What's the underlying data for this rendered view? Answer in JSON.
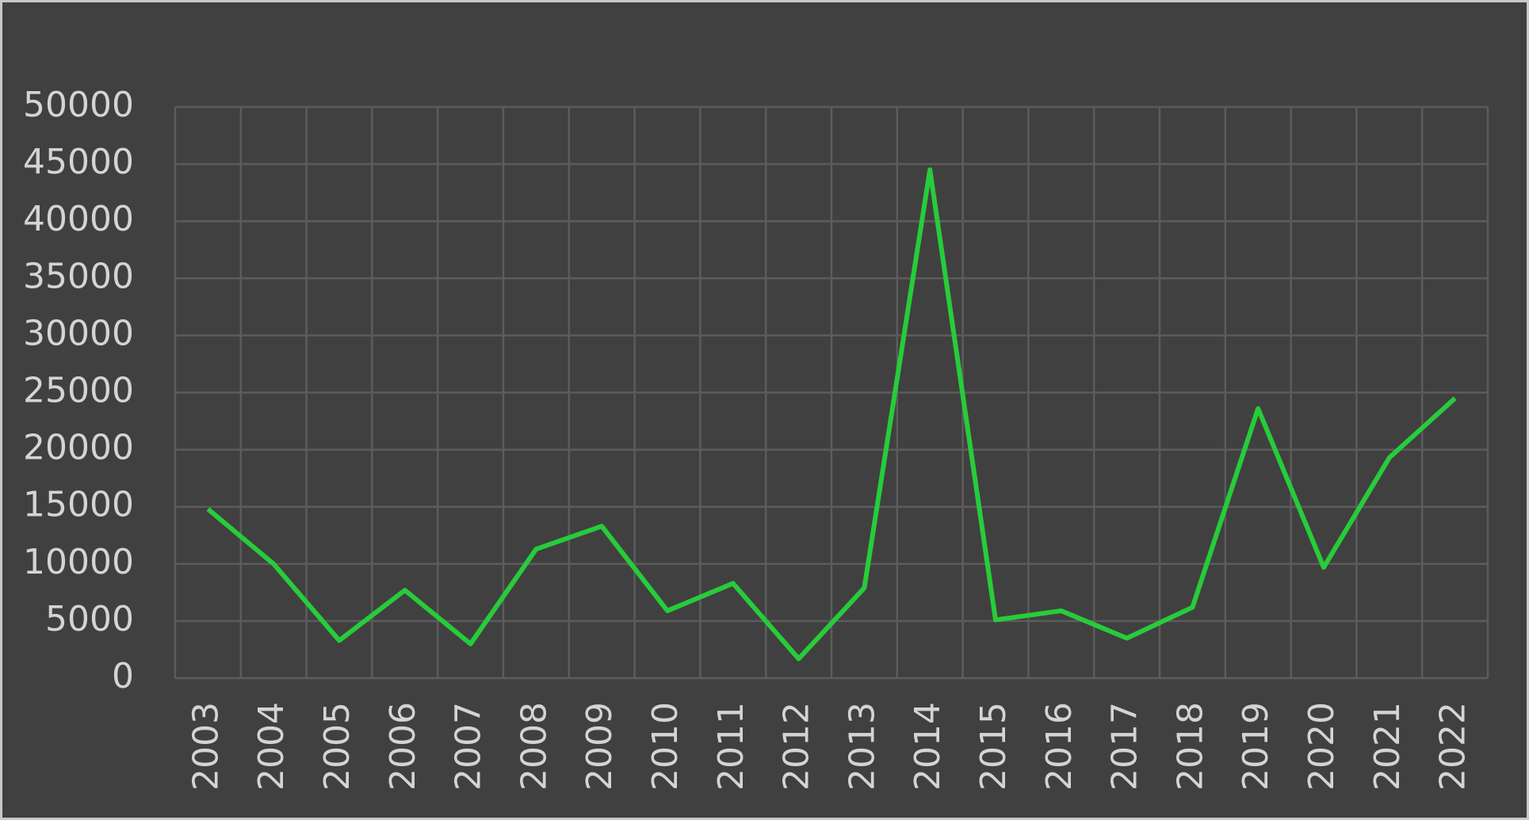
{
  "chart_data": {
    "type": "line",
    "categories": [
      "2003",
      "2004",
      "2005",
      "2006",
      "2007",
      "2008",
      "2009",
      "2010",
      "2011",
      "2012",
      "2013",
      "2014",
      "2015",
      "2016",
      "2017",
      "2018",
      "2019",
      "2020",
      "2021",
      "2022"
    ],
    "series": [
      {
        "color": "#27cc3a",
        "values": [
          14800,
          10000,
          3300,
          7700,
          3000,
          11300,
          13300,
          5900,
          8300,
          1700,
          7900,
          44500,
          5100,
          5900,
          3500,
          6200,
          23600,
          9700,
          19300,
          24500
        ]
      }
    ],
    "ylim": [
      0,
      50000
    ],
    "yticks": [
      0,
      5000,
      10000,
      15000,
      20000,
      25000,
      30000,
      35000,
      40000,
      45000,
      50000
    ],
    "grid": true
  }
}
